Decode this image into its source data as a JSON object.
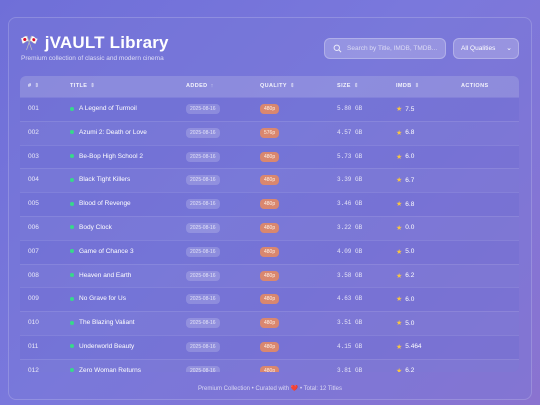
{
  "header": {
    "title_icon": "🎌",
    "title": "jVAULT Library",
    "subtitle": "Premium collection of classic and modern cinema"
  },
  "search": {
    "placeholder": "Search by Title, IMDB, TMDB..."
  },
  "filter": {
    "selected": "All Qualities"
  },
  "table": {
    "columns": [
      {
        "label": "#",
        "sort": "⇕"
      },
      {
        "label": "TITLE",
        "sort": "⇕"
      },
      {
        "label": "ADDED",
        "sort": "↑"
      },
      {
        "label": "QUALITY",
        "sort": "⇕"
      },
      {
        "label": "SIZE",
        "sort": "⇕"
      },
      {
        "label": "IMDB",
        "sort": "⇕"
      },
      {
        "label": "ACTIONS",
        "sort": ""
      }
    ],
    "rows": [
      {
        "num": "001",
        "title": "A Legend of Turmoil",
        "added": "2025-08-16",
        "quality": "480p",
        "size": "5.80 GB",
        "imdb": "7.5"
      },
      {
        "num": "002",
        "title": "Azumi 2: Death or Love",
        "added": "2025-08-16",
        "quality": "576p",
        "size": "4.57 GB",
        "imdb": "6.8"
      },
      {
        "num": "003",
        "title": "Be-Bop High School 2",
        "added": "2025-08-16",
        "quality": "480p",
        "size": "5.73 GB",
        "imdb": "6.0"
      },
      {
        "num": "004",
        "title": "Black Tight Killers",
        "added": "2025-08-16",
        "quality": "480p",
        "size": "3.39 GB",
        "imdb": "6.7"
      },
      {
        "num": "005",
        "title": "Blood of Revenge",
        "added": "2025-08-16",
        "quality": "480p",
        "size": "3.46 GB",
        "imdb": "6.8"
      },
      {
        "num": "006",
        "title": "Body Clock",
        "added": "2025-08-16",
        "quality": "480p",
        "size": "3.22 GB",
        "imdb": "0.0"
      },
      {
        "num": "007",
        "title": "Game of Chance 3",
        "added": "2025-08-16",
        "quality": "480p",
        "size": "4.09 GB",
        "imdb": "5.0"
      },
      {
        "num": "008",
        "title": "Heaven and Earth",
        "added": "2025-08-16",
        "quality": "480p",
        "size": "3.58 GB",
        "imdb": "6.2"
      },
      {
        "num": "009",
        "title": "No Grave for Us",
        "added": "2025-08-16",
        "quality": "480p",
        "size": "4.63 GB",
        "imdb": "6.0"
      },
      {
        "num": "010",
        "title": "The Blazing Valiant",
        "added": "2025-08-16",
        "quality": "480p",
        "size": "3.51 GB",
        "imdb": "5.0"
      },
      {
        "num": "011",
        "title": "Underworld Beauty",
        "added": "2025-08-16",
        "quality": "480p",
        "size": "4.15 GB",
        "imdb": "5.464"
      },
      {
        "num": "012",
        "title": "Zero Woman Returns",
        "added": "2025-08-16",
        "quality": "480p",
        "size": "3.81 GB",
        "imdb": "6.2"
      }
    ]
  },
  "footer": {
    "prefix": "Premium Collection • Curated with",
    "heart": "❤️",
    "suffix": "• Total: 12 Titles"
  },
  "colors": {
    "accent_quality": "#d9876f",
    "status_dot": "#37d98a",
    "star": "#f6c445"
  }
}
